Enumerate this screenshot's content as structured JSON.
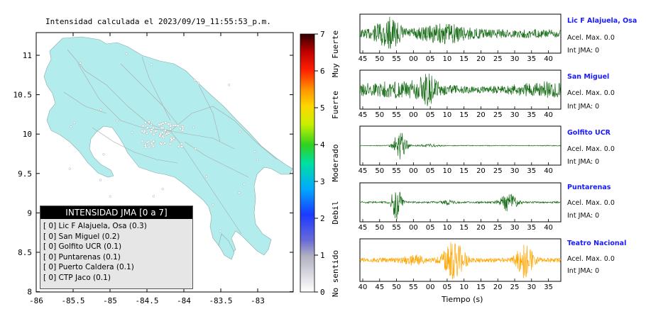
{
  "title": "Intensidad calculada el 2023/09/19_11:55:53_p.m.",
  "map": {
    "x_ticks": [
      "-86",
      "-85.5",
      "-85",
      "-84.5",
      "-84",
      "-83.5",
      "-83"
    ],
    "y_ticks": [
      "11",
      "10.5",
      "10",
      "9.5",
      "9",
      "8.5",
      "8"
    ],
    "land_color": "#b3ecec",
    "sea_color": "#ffffff"
  },
  "colorbar": {
    "ticks": [
      "0",
      "1",
      "2",
      "3",
      "4",
      "5",
      "6",
      "7"
    ],
    "labels": [
      "No sentido",
      "Debil",
      "Moderado",
      "Fuerte",
      "Muy Fuerte"
    ]
  },
  "legend": {
    "title": "INTENSIDAD JMA [0 a 7]",
    "items": [
      "[ 0]  Lic F Alajuela, Osa (0.3)",
      "[ 0]  San Miguel (0.2)",
      "[ 0]  Golfito UCR (0.1)",
      "[ 0]  Puntarenas (0.1)",
      "[ 0]  Puerto Caldera (0.1)",
      "[ 0]  CTP Jaco (0.1)"
    ]
  },
  "chart_data": [
    {
      "type": "line",
      "title": "Lic F Alajuela, Osa",
      "x_ticks": [
        "45",
        "50",
        "55",
        "00",
        "05",
        "10",
        "15",
        "20",
        "25",
        "30",
        "35",
        "40"
      ],
      "acel_label": "Acel. Max. 0.0",
      "int_label": "Int JMA: 0",
      "color": "#1a6e1a"
    },
    {
      "type": "line",
      "title": "San Miguel",
      "x_ticks": [
        "45",
        "50",
        "55",
        "00",
        "05",
        "10",
        "15",
        "20",
        "25",
        "30",
        "35",
        "40"
      ],
      "acel_label": "Acel. Max. 0.0",
      "int_label": "Int JMA: 0",
      "color": "#1a6e1a"
    },
    {
      "type": "line",
      "title": "Golfito UCR",
      "x_ticks": [
        "45",
        "50",
        "55",
        "00",
        "05",
        "10",
        "15",
        "20",
        "25",
        "30",
        "35",
        "40"
      ],
      "acel_label": "Acel. Max. 0.0",
      "int_label": "Int JMA: 0",
      "color": "#1a6e1a"
    },
    {
      "type": "line",
      "title": "Puntarenas",
      "x_ticks": [
        "45",
        "50",
        "55",
        "00",
        "05",
        "10",
        "15",
        "20",
        "25",
        "30",
        "35",
        "40"
      ],
      "acel_label": "Acel. Max. 0.0",
      "int_label": "Int JMA: 0",
      "color": "#1a6e1a"
    },
    {
      "type": "line",
      "title": "Teatro Nacional",
      "x_ticks": [
        "40",
        "45",
        "50",
        "55",
        "00",
        "05",
        "10",
        "15",
        "20",
        "25",
        "30",
        "35"
      ],
      "acel_label": "Acel. Max. 0.0",
      "int_label": "Int JMA: 0",
      "color": "#ffa500",
      "xlabel": "Tiempo (s)"
    }
  ]
}
